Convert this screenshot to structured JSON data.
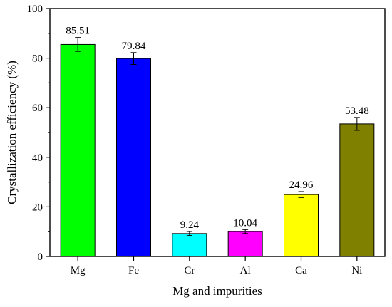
{
  "chart_data": {
    "type": "bar",
    "title": "",
    "xlabel": "Mg and impurities",
    "ylabel": "Crystallization efficiency (%)",
    "ylim": [
      0,
      100
    ],
    "yticks": [
      0,
      20,
      40,
      60,
      80,
      100
    ],
    "grid": false,
    "categories": [
      "Mg",
      "Fe",
      "Cr",
      "Al",
      "Ca",
      "Ni"
    ],
    "values": [
      85.51,
      79.84,
      9.24,
      10.04,
      24.96,
      53.48
    ],
    "value_labels": [
      "85.51",
      "79.84",
      "9.24",
      "10.04",
      "24.96",
      "53.48"
    ],
    "errors": [
      2.8,
      2.4,
      0.8,
      0.8,
      1.2,
      2.6
    ],
    "colors": [
      "#00ff00",
      "#0000ff",
      "#00ffff",
      "#ff00ff",
      "#ffff00",
      "#808000"
    ]
  }
}
